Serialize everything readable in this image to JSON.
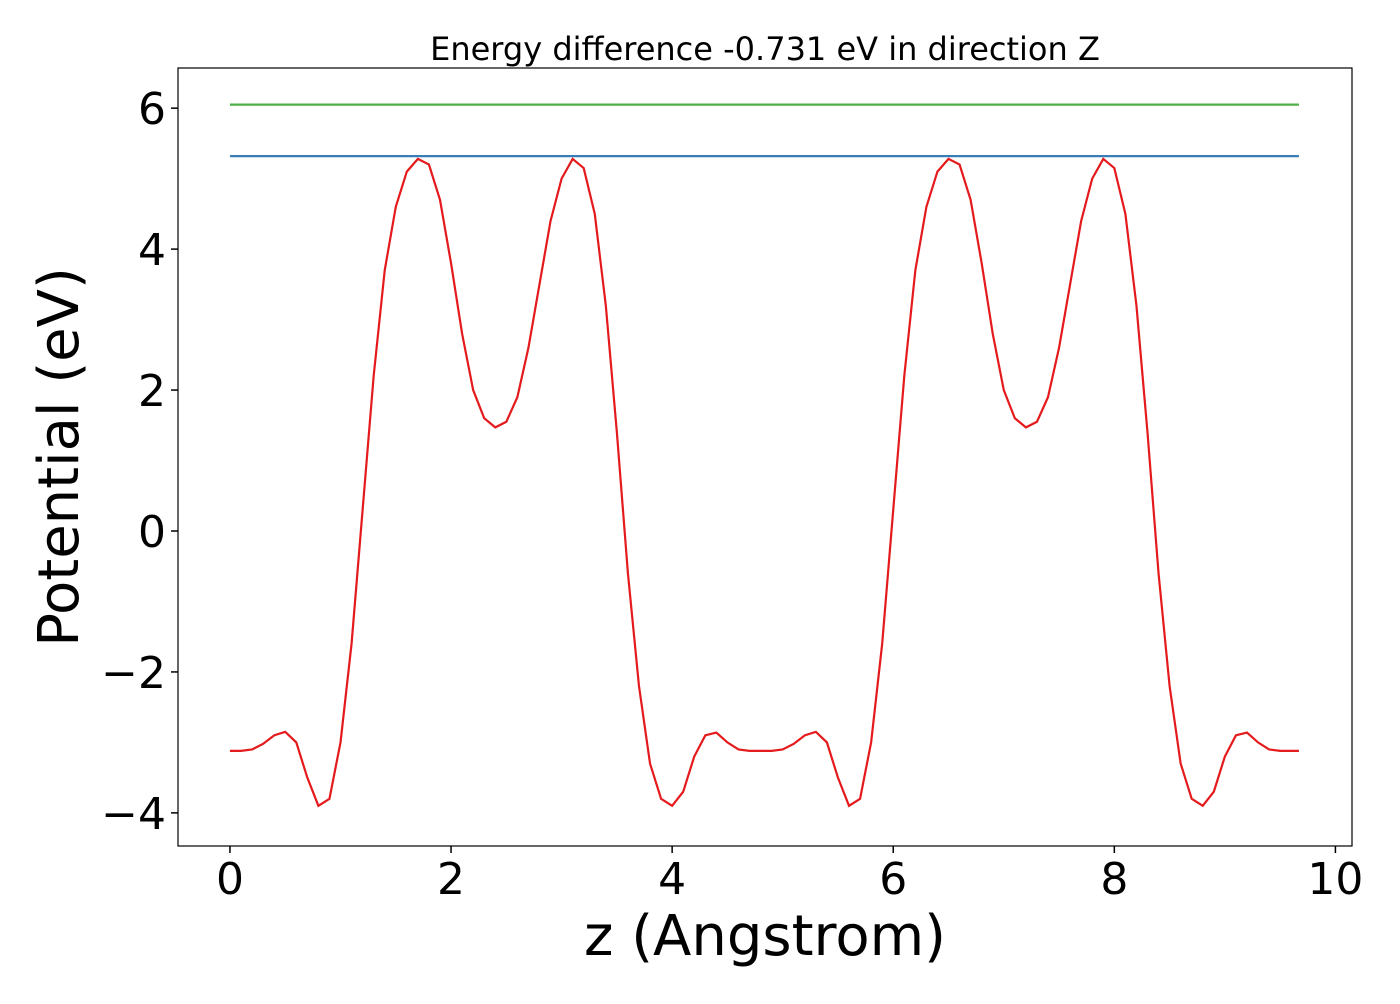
{
  "chart_data": {
    "type": "line",
    "title": "Energy difference -0.731 eV in direction Z",
    "xlabel": "z (Angstrom)",
    "ylabel": "Potential (eV)",
    "xlim": [
      -0.47,
      10.15
    ],
    "ylim": [
      -4.47,
      6.57
    ],
    "xticks": [
      0,
      2,
      4,
      6,
      8,
      10
    ],
    "yticks": [
      {
        "value": -4,
        "label": "−4"
      },
      {
        "value": -2,
        "label": "−2"
      },
      0,
      2,
      4,
      6
    ],
    "series": [
      {
        "color": "#e41a1c",
        "x": [
          0,
          0.1,
          0.2,
          0.3,
          0.4,
          0.5,
          0.6,
          0.7,
          0.8,
          0.9,
          1.0,
          1.1,
          1.2,
          1.3,
          1.4,
          1.5,
          1.6,
          1.7,
          1.8,
          1.9,
          2.0,
          2.1,
          2.2,
          2.3,
          2.4,
          2.5,
          2.6,
          2.7,
          2.8,
          2.9,
          3.0,
          3.1,
          3.2,
          3.3,
          3.4,
          3.5,
          3.6,
          3.7,
          3.8,
          3.9,
          4.0,
          4.1,
          4.2,
          4.3,
          4.4,
          4.5,
          4.6,
          4.7,
          4.8,
          4.9,
          5.0,
          5.1,
          5.2,
          5.3,
          5.4,
          5.5,
          5.6,
          5.7,
          5.8,
          5.9,
          6.0,
          6.1,
          6.2,
          6.3,
          6.4,
          6.5,
          6.6,
          6.7,
          6.8,
          6.9,
          7.0,
          7.1,
          7.2,
          7.3,
          7.4,
          7.5,
          7.6,
          7.7,
          7.8,
          7.9,
          8.0,
          8.1,
          8.2,
          8.3,
          8.4,
          8.5,
          8.6,
          8.7,
          8.8,
          8.9,
          9.0,
          9.1,
          9.2,
          9.3,
          9.4,
          9.5,
          9.6,
          9.67
        ],
        "values": [
          -3.12,
          -3.12,
          -3.1,
          -3.02,
          -2.9,
          -2.85,
          -3.0,
          -3.5,
          -3.9,
          -3.8,
          -3.0,
          -1.6,
          0.3,
          2.2,
          3.7,
          4.6,
          5.1,
          5.28,
          5.2,
          4.7,
          3.8,
          2.8,
          2.0,
          1.6,
          1.47,
          1.55,
          1.9,
          2.6,
          3.5,
          4.4,
          5.0,
          5.28,
          5.15,
          4.5,
          3.2,
          1.4,
          -0.6,
          -2.2,
          -3.3,
          -3.8,
          -3.9,
          -3.7,
          -3.2,
          -2.9,
          -2.86,
          -3.0,
          -3.1,
          -3.12,
          -3.12,
          -3.12,
          -3.1,
          -3.02,
          -2.9,
          -2.85,
          -3.0,
          -3.5,
          -3.9,
          -3.8,
          -3.0,
          -1.6,
          0.3,
          2.2,
          3.7,
          4.6,
          5.1,
          5.28,
          5.2,
          4.7,
          3.8,
          2.8,
          2.0,
          1.6,
          1.47,
          1.55,
          1.9,
          2.6,
          3.5,
          4.4,
          5.0,
          5.28,
          5.15,
          4.5,
          3.2,
          1.4,
          -0.6,
          -2.2,
          -3.3,
          -3.8,
          -3.9,
          -3.7,
          -3.2,
          -2.9,
          -2.86,
          -3.0,
          -3.1,
          -3.12,
          -3.12,
          -3.12
        ]
      },
      {
        "color": "#377eb8",
        "x": [
          0,
          9.67
        ],
        "values": [
          5.32,
          5.32
        ]
      },
      {
        "color": "#4daf4a",
        "x": [
          0,
          9.67
        ],
        "values": [
          6.05,
          6.05
        ]
      }
    ]
  }
}
